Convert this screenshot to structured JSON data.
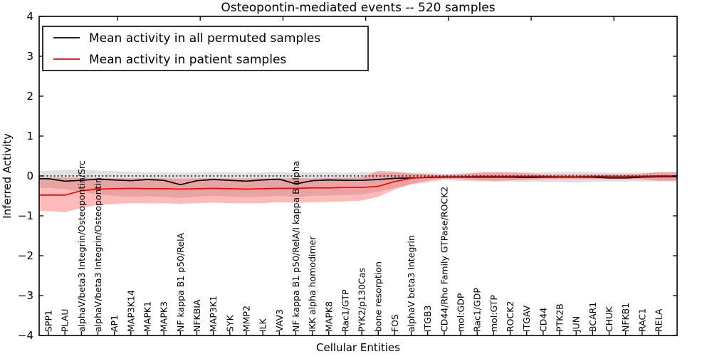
{
  "figure": {
    "title": "Osteopontin-mediated events -- 520 samples",
    "xlabel": "Cellular Entities",
    "ylabel": "Inferred Activity"
  },
  "legend": {
    "entries": [
      {
        "label": "Mean activity in all permuted samples",
        "color": "#000000"
      },
      {
        "label": "Mean activity in patient samples",
        "color": "#ff0000"
      }
    ]
  },
  "chart_data": {
    "type": "line",
    "title": "Osteopontin-mediated events -- 520 samples",
    "xlabel": "Cellular Entities",
    "ylabel": "Inferred Activity",
    "ylim": [
      -4,
      4
    ],
    "yticks": [
      4,
      3,
      2,
      1,
      0,
      -1,
      -2,
      -3,
      -4
    ],
    "grid": false,
    "legend_position": "upper-left",
    "zero_reference_line": {
      "y": 0,
      "style": "dotted",
      "color": "#000000"
    },
    "categories": [
      "SPP1",
      "PLAU",
      "alphaV/beta3 Integrin/Osteopontin/Src",
      "alphaV/beta3 Integrin/Osteopontin",
      "AP1",
      "MAP3K14",
      "MAPK1",
      "MAPK3",
      "NF kappa B1 p50/RelA",
      "NFKBIA",
      "MAP3K1",
      "SYK",
      "MMP2",
      "ILK",
      "VAV3",
      "NF kappa B1 p50/RelA/I kappa B alpha",
      "IKK alpha homodimer",
      "MAPK8",
      "Rac1/GTP",
      "PYK2/p130Cas",
      "bone resorption",
      "FOS",
      "alphaV beta3 Integrin",
      "ITGB3",
      "CD44/Rho Family GTPase/ROCK2",
      "mol:GDP",
      "Rac1/GDP",
      "mol:GTP",
      "ROCK2",
      "ITGAV",
      "CD44",
      "PTK2B",
      "JUN",
      "BCAR1",
      "CHUK",
      "NFKB1",
      "RAC1",
      "RELA"
    ],
    "series": [
      {
        "name": "Mean activity in all permuted samples",
        "color": "#000000",
        "band_color": "#000000",
        "band_opacity": 0.12,
        "values": [
          -0.07,
          -0.13,
          -0.11,
          -0.08,
          -0.1,
          -0.12,
          -0.09,
          -0.11,
          -0.22,
          -0.12,
          -0.09,
          -0.11,
          -0.13,
          -0.1,
          -0.08,
          -0.2,
          -0.12,
          -0.1,
          -0.11,
          -0.11,
          -0.09,
          -0.06,
          -0.05,
          -0.04,
          -0.03,
          -0.03,
          -0.03,
          -0.03,
          -0.03,
          -0.04,
          -0.03,
          -0.03,
          -0.03,
          -0.03,
          -0.05,
          -0.05,
          -0.03,
          -0.02
        ],
        "band_upper": [
          0.13,
          0.15,
          0.16,
          0.14,
          0.12,
          0.1,
          0.09,
          0.09,
          0.08,
          0.09,
          0.1,
          0.09,
          0.08,
          0.09,
          0.1,
          0.08,
          0.09,
          0.09,
          0.08,
          0.09,
          0.08,
          0.08,
          0.08,
          0.08,
          0.05,
          0.07,
          0.08,
          0.08,
          0.08,
          0.09,
          0.09,
          0.09,
          0.1,
          0.09,
          0.08,
          0.08,
          0.08,
          0.08
        ],
        "band_lower": [
          -0.3,
          -0.33,
          -0.4,
          -0.46,
          -0.5,
          -0.52,
          -0.51,
          -0.52,
          -0.55,
          -0.52,
          -0.5,
          -0.52,
          -0.53,
          -0.52,
          -0.5,
          -0.53,
          -0.5,
          -0.49,
          -0.48,
          -0.46,
          -0.4,
          -0.3,
          -0.22,
          -0.17,
          -0.1,
          -0.13,
          -0.14,
          -0.15,
          -0.14,
          -0.15,
          -0.15,
          -0.16,
          -0.17,
          -0.15,
          -0.14,
          -0.14,
          -0.14,
          -0.14
        ]
      },
      {
        "name": "Mean activity in patient samples",
        "color": "#ff0000",
        "band_color": "#ff0000",
        "band_opacity": 0.27,
        "values": [
          -0.48,
          -0.48,
          -0.37,
          -0.33,
          -0.32,
          -0.31,
          -0.32,
          -0.32,
          -0.33,
          -0.32,
          -0.31,
          -0.32,
          -0.33,
          -0.32,
          -0.31,
          -0.31,
          -0.3,
          -0.3,
          -0.29,
          -0.29,
          -0.26,
          -0.14,
          -0.06,
          -0.03,
          -0.02,
          -0.02,
          -0.01,
          -0.01,
          -0.01,
          -0.01,
          -0.01,
          -0.02,
          -0.02,
          -0.01,
          -0.01,
          -0.01,
          -0.01,
          0.0
        ],
        "band_upper": [
          -0.04,
          -0.04,
          -0.05,
          -0.05,
          -0.06,
          -0.06,
          -0.06,
          -0.06,
          -0.07,
          -0.06,
          -0.06,
          -0.06,
          -0.06,
          -0.06,
          -0.06,
          -0.06,
          -0.06,
          -0.05,
          -0.05,
          -0.04,
          0.13,
          0.11,
          0.06,
          0.04,
          0.03,
          0.04,
          0.08,
          0.1,
          0.09,
          0.07,
          0.04,
          0.04,
          0.04,
          0.04,
          0.04,
          0.04,
          0.06,
          0.1
        ],
        "band_lower": [
          -0.88,
          -0.91,
          -0.8,
          -0.73,
          -0.7,
          -0.68,
          -0.69,
          -0.68,
          -0.7,
          -0.68,
          -0.67,
          -0.68,
          -0.69,
          -0.68,
          -0.66,
          -0.67,
          -0.66,
          -0.65,
          -0.64,
          -0.62,
          -0.52,
          -0.34,
          -0.2,
          -0.12,
          -0.07,
          -0.08,
          -0.11,
          -0.12,
          -0.11,
          -0.1,
          -0.08,
          -0.08,
          -0.08,
          -0.08,
          -0.08,
          -0.08,
          -0.09,
          -0.12
        ]
      }
    ]
  }
}
